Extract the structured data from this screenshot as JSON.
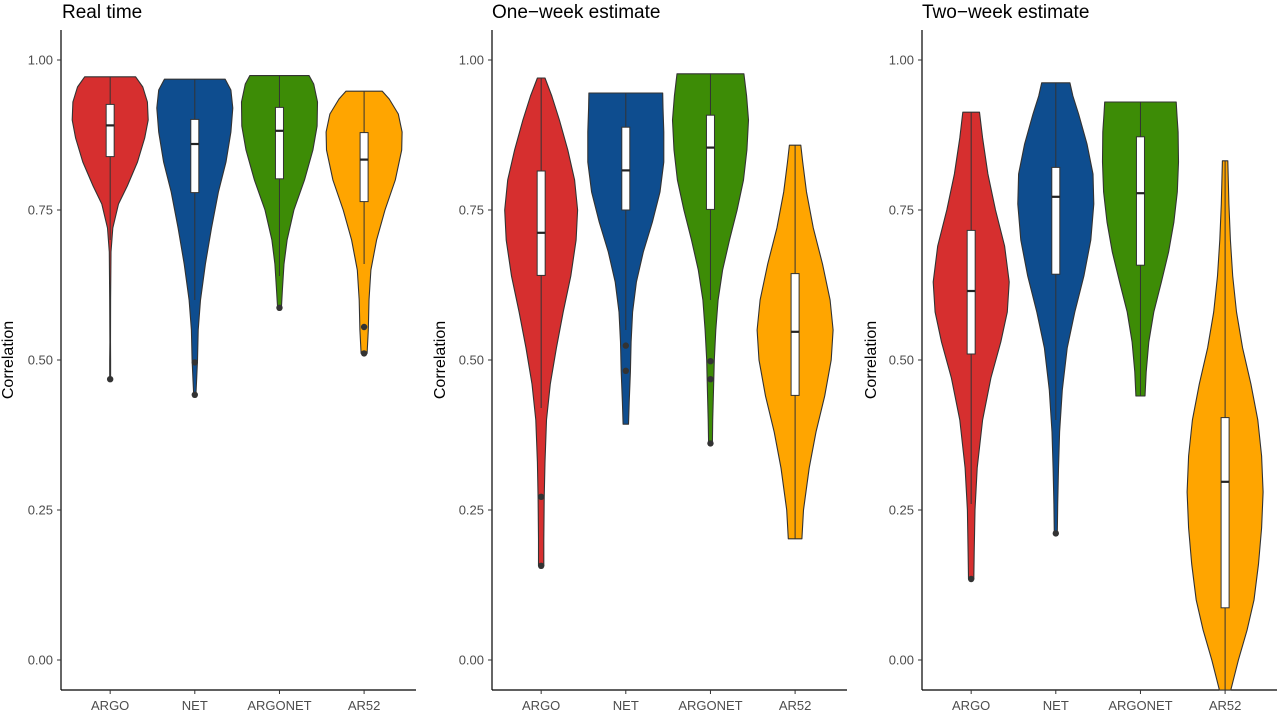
{
  "figure": {
    "categories": [
      "ARGO",
      "NET",
      "ARGONET",
      "AR52"
    ],
    "colors": {
      "ARGO": "#d62f2f",
      "NET": "#0e4d8f",
      "ARGONET": "#3d8c06",
      "AR52": "#ffa500"
    },
    "ylabel": "Correlation",
    "yticks": [
      "0.00",
      "0.25",
      "0.50",
      "0.75",
      "1.00"
    ]
  },
  "chart_data": [
    {
      "type": "violin",
      "title": "Real time",
      "ylabel": "Correlation",
      "ylim": [
        -0.05,
        1.05
      ],
      "categories": [
        "ARGO",
        "NET",
        "ARGONET",
        "AR52"
      ],
      "series": [
        {
          "category": "ARGO",
          "min": 0.468,
          "max": 0.972,
          "box": {
            "q1": 0.839,
            "median": 0.891,
            "q3": 0.926
          },
          "whisker": [
            0.7,
            0.972
          ],
          "outliers": [
            0.468
          ],
          "density": [
            [
              0.468,
              0.012
            ],
            [
              0.5,
              0.012
            ],
            [
              0.53,
              0.008
            ],
            [
              0.6,
              0.012
            ],
            [
              0.68,
              0.022
            ],
            [
              0.72,
              0.07
            ],
            [
              0.76,
              0.22
            ],
            [
              0.79,
              0.45
            ],
            [
              0.83,
              0.72
            ],
            [
              0.87,
              0.91
            ],
            [
              0.9,
              1.0
            ],
            [
              0.93,
              0.98
            ],
            [
              0.955,
              0.86
            ],
            [
              0.972,
              0.67
            ]
          ]
        },
        {
          "category": "NET",
          "min": 0.442,
          "max": 0.968,
          "box": {
            "q1": 0.779,
            "median": 0.86,
            "q3": 0.901
          },
          "whisker": [
            0.6,
            0.968
          ],
          "outliers": [
            0.496,
            0.442
          ],
          "density": [
            [
              0.442,
              0.03
            ],
            [
              0.47,
              0.05
            ],
            [
              0.5,
              0.07
            ],
            [
              0.55,
              0.09
            ],
            [
              0.6,
              0.15
            ],
            [
              0.66,
              0.28
            ],
            [
              0.72,
              0.44
            ],
            [
              0.78,
              0.62
            ],
            [
              0.83,
              0.82
            ],
            [
              0.88,
              0.95
            ],
            [
              0.92,
              1.0
            ],
            [
              0.95,
              0.95
            ],
            [
              0.968,
              0.8
            ]
          ]
        },
        {
          "category": "ARGONET",
          "min": 0.587,
          "max": 0.974,
          "box": {
            "q1": 0.802,
            "median": 0.882,
            "q3": 0.921
          },
          "whisker": [
            0.64,
            0.974
          ],
          "outliers": [
            0.587
          ],
          "density": [
            [
              0.587,
              0.05
            ],
            [
              0.62,
              0.08
            ],
            [
              0.66,
              0.12
            ],
            [
              0.7,
              0.2
            ],
            [
              0.75,
              0.38
            ],
            [
              0.8,
              0.66
            ],
            [
              0.85,
              0.88
            ],
            [
              0.89,
              0.99
            ],
            [
              0.93,
              1.0
            ],
            [
              0.96,
              0.9
            ],
            [
              0.974,
              0.78
            ]
          ]
        },
        {
          "category": "AR52",
          "min": 0.511,
          "max": 0.948,
          "box": {
            "q1": 0.764,
            "median": 0.834,
            "q3": 0.879
          },
          "whisker": [
            0.66,
            0.948
          ],
          "outliers": [
            0.555,
            0.511
          ],
          "density": [
            [
              0.511,
              0.08
            ],
            [
              0.55,
              0.11
            ],
            [
              0.6,
              0.13
            ],
            [
              0.65,
              0.18
            ],
            [
              0.7,
              0.33
            ],
            [
              0.75,
              0.55
            ],
            [
              0.8,
              0.82
            ],
            [
              0.85,
              0.99
            ],
            [
              0.88,
              1.0
            ],
            [
              0.91,
              0.9
            ],
            [
              0.935,
              0.66
            ],
            [
              0.948,
              0.48
            ]
          ]
        }
      ]
    },
    {
      "type": "violin",
      "title": "One−week estimate",
      "ylabel": "Correlation",
      "ylim": [
        -0.05,
        1.05
      ],
      "categories": [
        "ARGO",
        "NET",
        "ARGONET",
        "AR52"
      ],
      "series": [
        {
          "category": "ARGO",
          "min": 0.157,
          "max": 0.97,
          "box": {
            "q1": 0.641,
            "median": 0.712,
            "q3": 0.815
          },
          "whisker": [
            0.42,
            0.97
          ],
          "outliers": [
            0.272,
            0.157
          ],
          "density": [
            [
              0.157,
              0.07
            ],
            [
              0.2,
              0.07
            ],
            [
              0.27,
              0.08
            ],
            [
              0.33,
              0.1
            ],
            [
              0.4,
              0.14
            ],
            [
              0.46,
              0.24
            ],
            [
              0.52,
              0.4
            ],
            [
              0.58,
              0.58
            ],
            [
              0.64,
              0.78
            ],
            [
              0.7,
              0.92
            ],
            [
              0.75,
              0.96
            ],
            [
              0.8,
              0.88
            ],
            [
              0.85,
              0.7
            ],
            [
              0.9,
              0.48
            ],
            [
              0.94,
              0.28
            ],
            [
              0.97,
              0.1
            ]
          ]
        },
        {
          "category": "NET",
          "min": 0.393,
          "max": 0.945,
          "box": {
            "q1": 0.75,
            "median": 0.816,
            "q3": 0.888
          },
          "whisker": [
            0.55,
            0.945
          ],
          "outliers": [
            0.524,
            0.482
          ],
          "density": [
            [
              0.393,
              0.07
            ],
            [
              0.43,
              0.09
            ],
            [
              0.48,
              0.12
            ],
            [
              0.53,
              0.14
            ],
            [
              0.58,
              0.18
            ],
            [
              0.63,
              0.28
            ],
            [
              0.68,
              0.46
            ],
            [
              0.73,
              0.7
            ],
            [
              0.78,
              0.9
            ],
            [
              0.83,
              1.0
            ],
            [
              0.88,
              1.0
            ],
            [
              0.92,
              0.98
            ],
            [
              0.945,
              0.97
            ]
          ]
        },
        {
          "category": "ARGONET",
          "min": 0.361,
          "max": 0.977,
          "box": {
            "q1": 0.751,
            "median": 0.854,
            "q3": 0.908
          },
          "whisker": [
            0.6,
            0.977
          ],
          "outliers": [
            0.498,
            0.468,
            0.361
          ],
          "density": [
            [
              0.361,
              0.05
            ],
            [
              0.4,
              0.06
            ],
            [
              0.45,
              0.08
            ],
            [
              0.5,
              0.1
            ],
            [
              0.55,
              0.14
            ],
            [
              0.6,
              0.2
            ],
            [
              0.65,
              0.32
            ],
            [
              0.7,
              0.5
            ],
            [
              0.75,
              0.7
            ],
            [
              0.8,
              0.87
            ],
            [
              0.85,
              0.96
            ],
            [
              0.9,
              1.0
            ],
            [
              0.94,
              0.95
            ],
            [
              0.977,
              0.88
            ]
          ]
        },
        {
          "category": "AR52",
          "min": 0.202,
          "max": 0.858,
          "box": {
            "q1": 0.441,
            "median": 0.547,
            "q3": 0.644
          },
          "whisker": [
            0.202,
            0.858
          ],
          "outliers": [],
          "density": [
            [
              0.202,
              0.18
            ],
            [
              0.25,
              0.22
            ],
            [
              0.32,
              0.37
            ],
            [
              0.38,
              0.55
            ],
            [
              0.44,
              0.78
            ],
            [
              0.5,
              0.95
            ],
            [
              0.55,
              1.0
            ],
            [
              0.6,
              0.92
            ],
            [
              0.66,
              0.72
            ],
            [
              0.72,
              0.48
            ],
            [
              0.78,
              0.3
            ],
            [
              0.83,
              0.2
            ],
            [
              0.858,
              0.15
            ]
          ]
        }
      ]
    },
    {
      "type": "violin",
      "title": "Two−week estimate",
      "ylabel": "Correlation",
      "ylim": [
        -0.05,
        1.05
      ],
      "categories": [
        "ARGO",
        "NET",
        "ARGONET",
        "AR52"
      ],
      "series": [
        {
          "category": "ARGO",
          "min": 0.135,
          "max": 0.913,
          "box": {
            "q1": 0.51,
            "median": 0.615,
            "q3": 0.716
          },
          "whisker": [
            0.26,
            0.913
          ],
          "outliers": [
            0.135
          ],
          "density": [
            [
              0.135,
              0.07
            ],
            [
              0.18,
              0.08
            ],
            [
              0.25,
              0.1
            ],
            [
              0.32,
              0.16
            ],
            [
              0.4,
              0.3
            ],
            [
              0.47,
              0.52
            ],
            [
              0.53,
              0.78
            ],
            [
              0.58,
              0.95
            ],
            [
              0.63,
              1.0
            ],
            [
              0.69,
              0.88
            ],
            [
              0.75,
              0.64
            ],
            [
              0.81,
              0.44
            ],
            [
              0.87,
              0.3
            ],
            [
              0.913,
              0.22
            ]
          ]
        },
        {
          "category": "NET",
          "min": 0.211,
          "max": 0.962,
          "box": {
            "q1": 0.643,
            "median": 0.772,
            "q3": 0.821
          },
          "whisker": [
            0.4,
            0.962
          ],
          "outliers": [
            0.211
          ],
          "density": [
            [
              0.211,
              0.04
            ],
            [
              0.26,
              0.05
            ],
            [
              0.32,
              0.07
            ],
            [
              0.38,
              0.1
            ],
            [
              0.45,
              0.17
            ],
            [
              0.52,
              0.3
            ],
            [
              0.58,
              0.5
            ],
            [
              0.64,
              0.74
            ],
            [
              0.7,
              0.92
            ],
            [
              0.76,
              1.0
            ],
            [
              0.81,
              0.98
            ],
            [
              0.86,
              0.82
            ],
            [
              0.91,
              0.6
            ],
            [
              0.94,
              0.45
            ],
            [
              0.962,
              0.37
            ]
          ]
        },
        {
          "category": "ARGONET",
          "min": 0.44,
          "max": 0.93,
          "box": {
            "q1": 0.658,
            "median": 0.778,
            "q3": 0.872
          },
          "whisker": [
            0.44,
            0.93
          ],
          "outliers": [],
          "density": [
            [
              0.44,
              0.12
            ],
            [
              0.48,
              0.15
            ],
            [
              0.53,
              0.22
            ],
            [
              0.58,
              0.35
            ],
            [
              0.63,
              0.55
            ],
            [
              0.68,
              0.74
            ],
            [
              0.73,
              0.88
            ],
            [
              0.78,
              0.97
            ],
            [
              0.83,
              1.0
            ],
            [
              0.88,
              0.99
            ],
            [
              0.91,
              0.96
            ],
            [
              0.93,
              0.94
            ]
          ]
        },
        {
          "category": "AR52",
          "min": -0.05,
          "max": 0.832,
          "box": {
            "q1": 0.087,
            "median": 0.297,
            "q3": 0.404
          },
          "whisker": [
            -0.05,
            0.832
          ],
          "outliers": [],
          "density": [
            [
              -0.05,
              0.15
            ],
            [
              0.0,
              0.35
            ],
            [
              0.05,
              0.58
            ],
            [
              0.1,
              0.76
            ],
            [
              0.16,
              0.88
            ],
            [
              0.22,
              0.96
            ],
            [
              0.28,
              1.0
            ],
            [
              0.34,
              0.96
            ],
            [
              0.4,
              0.86
            ],
            [
              0.46,
              0.68
            ],
            [
              0.52,
              0.46
            ],
            [
              0.58,
              0.3
            ],
            [
              0.64,
              0.2
            ],
            [
              0.7,
              0.14
            ],
            [
              0.76,
              0.1
            ],
            [
              0.832,
              0.07
            ]
          ]
        }
      ]
    }
  ]
}
